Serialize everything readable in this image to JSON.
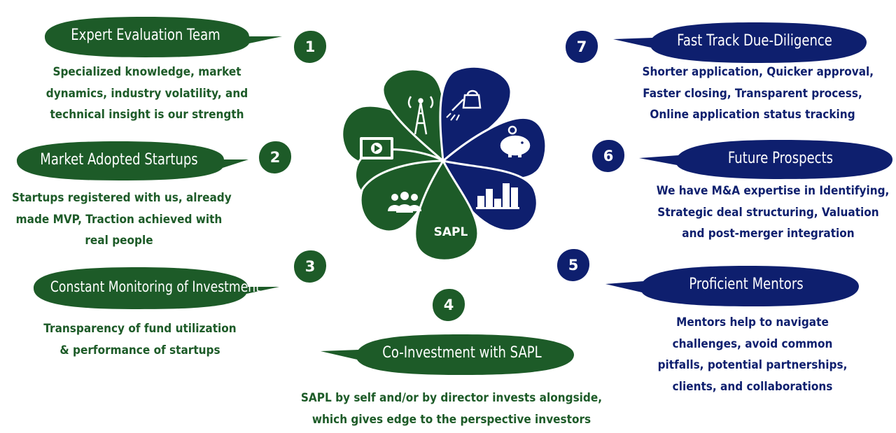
{
  "colors": {
    "green": "#1d5b28",
    "navy": "#0e1f6e",
    "white": "#ffffff"
  },
  "center": {
    "label": "SAPL"
  },
  "petals": [
    {
      "icon": "video-play-icon"
    },
    {
      "icon": "antenna-tower-icon"
    },
    {
      "icon": "watering-can-icon"
    },
    {
      "icon": "piggy-bank-icon"
    },
    {
      "icon": "bar-chart-icon"
    },
    {
      "icon": "team-people-icon"
    }
  ],
  "items": [
    {
      "num": "1",
      "title": "Expert Evaluation Team",
      "lines": [
        "Specialized knowledge, market",
        "dynamics, industry volatility, and",
        "technical insight is our strength"
      ]
    },
    {
      "num": "2",
      "title": "Market Adopted Startups",
      "lines": [
        "Startups registered with us, already",
        "made MVP, Traction achieved with",
        "real people"
      ]
    },
    {
      "num": "3",
      "title": "Constant Monitoring of Investment",
      "lines": [
        "Transparency of fund utilization",
        "& performance of startups"
      ]
    },
    {
      "num": "4",
      "title": "Co-Investment with SAPL",
      "lines": [
        "SAPL by self and/or by director invests alongside,",
        "which gives edge to the perspective investors"
      ]
    },
    {
      "num": "5",
      "title": "Proficient Mentors",
      "lines": [
        "Mentors help to navigate",
        "challenges, avoid common",
        "pitfalls, potential partnerships,",
        "clients, and collaborations"
      ]
    },
    {
      "num": "6",
      "title": "Future Prospects",
      "lines": [
        "We have M&A expertise in Identifying,",
        "Strategic deal structuring, Valuation",
        "and post-merger integration"
      ]
    },
    {
      "num": "7",
      "title": "Fast Track Due-Diligence",
      "lines": [
        "Shorter application, Quicker approval,",
        "Faster closing, Transparent process,",
        "Online application status tracking"
      ]
    }
  ]
}
